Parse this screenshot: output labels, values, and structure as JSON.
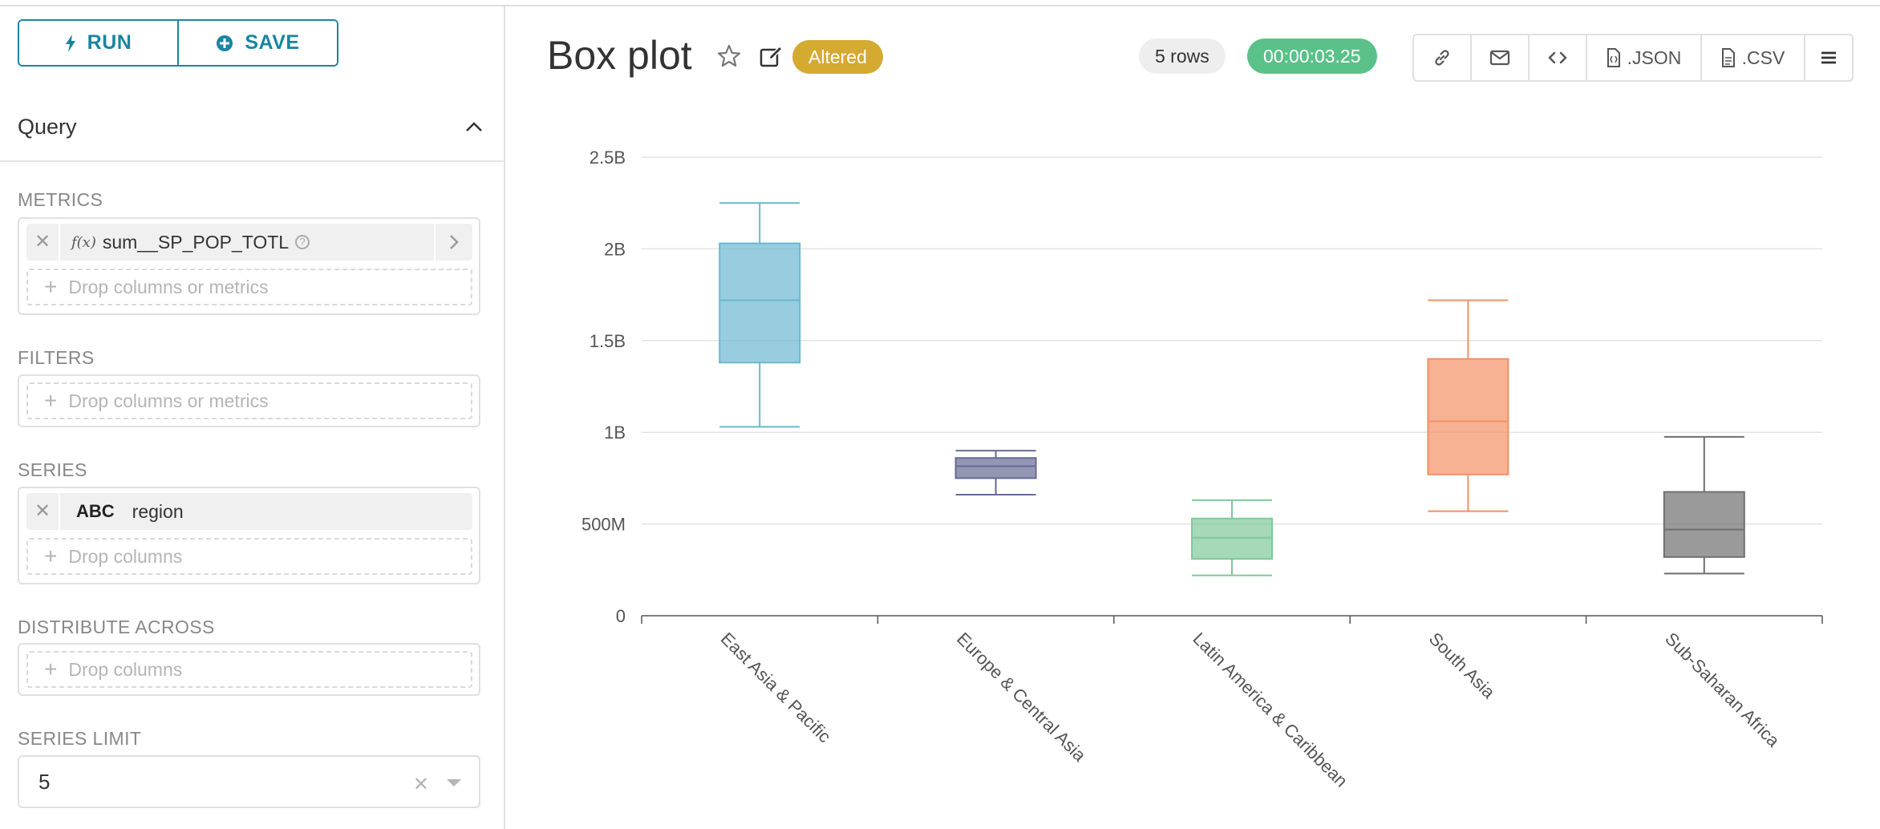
{
  "toolbar": {
    "run_label": "RUN",
    "save_label": "SAVE"
  },
  "query": {
    "title": "Query"
  },
  "metrics": {
    "label": "METRICS",
    "item": {
      "name": "sum__SP_POP_TOTL",
      "fx": "f(x)"
    },
    "placeholder": "Drop columns or metrics"
  },
  "filters": {
    "label": "FILTERS",
    "placeholder": "Drop columns or metrics"
  },
  "series": {
    "label": "SERIES",
    "item": {
      "type": "ABC",
      "name": "region"
    },
    "placeholder": "Drop columns"
  },
  "distribute": {
    "label": "DISTRIBUTE ACROSS",
    "placeholder": "Drop columns"
  },
  "series_limit": {
    "label": "SERIES LIMIT",
    "value": "5"
  },
  "header": {
    "title": "Box plot",
    "status_badge": "Altered",
    "rows": "5 rows",
    "timer": "00:00:03.25",
    "json_label": ".JSON",
    "csv_label": ".CSV"
  },
  "colors": {
    "accent": "#1a85a0",
    "altered": "#d4aa31",
    "timer": "#5ac189"
  },
  "chart_data": {
    "type": "boxplot",
    "title": "",
    "xlabel": "",
    "ylabel": "",
    "ylim": [
      0,
      2500000000
    ],
    "y_ticks": [
      {
        "value": 0,
        "label": "0"
      },
      {
        "value": 500000000,
        "label": "500M"
      },
      {
        "value": 1000000000,
        "label": "1B"
      },
      {
        "value": 1500000000,
        "label": "1.5B"
      },
      {
        "value": 2000000000,
        "label": "2B"
      },
      {
        "value": 2500000000,
        "label": "2.5B"
      }
    ],
    "categories": [
      "East Asia & Pacific",
      "Europe & Central Asia",
      "Latin America & Caribbean",
      "South Asia",
      "Sub-Saharan Africa"
    ],
    "series": [
      {
        "name": "East Asia & Pacific",
        "min": 1030000000,
        "q1": 1380000000,
        "median": 1720000000,
        "q3": 2030000000,
        "max": 2250000000,
        "color": "#6bb8d1"
      },
      {
        "name": "Europe & Central Asia",
        "min": 660000000,
        "q1": 750000000,
        "median": 815000000,
        "q3": 860000000,
        "max": 900000000,
        "color": "#666b94"
      },
      {
        "name": "Latin America & Caribbean",
        "min": 220000000,
        "q1": 310000000,
        "median": 425000000,
        "q3": 530000000,
        "max": 630000000,
        "color": "#7fc99a"
      },
      {
        "name": "South Asia",
        "min": 570000000,
        "q1": 770000000,
        "median": 1060000000,
        "q3": 1400000000,
        "max": 1720000000,
        "color": "#f29164"
      },
      {
        "name": "Sub-Saharan Africa",
        "min": 230000000,
        "q1": 320000000,
        "median": 470000000,
        "q3": 675000000,
        "max": 975000000,
        "color": "#6f6f6f"
      }
    ]
  }
}
